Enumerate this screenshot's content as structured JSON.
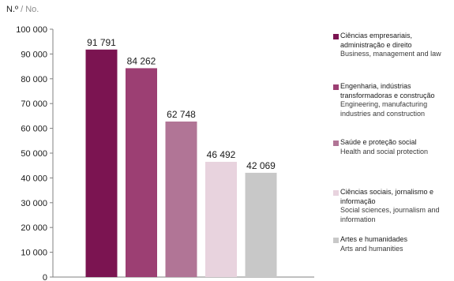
{
  "unit_label": {
    "pt": "N.º",
    "separator": " / ",
    "en": "No."
  },
  "chart_data": {
    "type": "bar",
    "categories": [
      "Ciências empresariais, administração e direito / Business, management and law",
      "Engenharia, indústrias transformadoras e construção / Engineering, manufacturing industries and construction",
      "Saúde e proteção social / Health and social protection",
      "Ciências sociais, jornalismo e informação / Social sciences, journalism and information",
      "Artes e humanidades / Arts and humanities"
    ],
    "values": [
      91791,
      84262,
      62748,
      46492,
      42069
    ],
    "data_labels": [
      "91 791",
      "84 262",
      "62 748",
      "46 492",
      "42 069"
    ],
    "colors": [
      "#7b1451",
      "#9c3f73",
      "#b17596",
      "#e8d3de",
      "#c8c8c8"
    ],
    "ylim": [
      0,
      100000
    ],
    "yticks": [
      0,
      10000,
      20000,
      30000,
      40000,
      50000,
      60000,
      70000,
      80000,
      90000,
      100000
    ],
    "ytick_labels": [
      "0",
      "10 000",
      "20 000",
      "30 000",
      "40 000",
      "50 000",
      "60 000",
      "70 000",
      "80 000",
      "90 000",
      "100 000"
    ],
    "grid": false,
    "legend_position": "right"
  },
  "legend": [
    {
      "pt": "Ciências empresariais, administração e direito",
      "en": "Business, management and law",
      "color": "#7b1451"
    },
    {
      "pt": "Engenharia, indústrias transformadoras e construção",
      "en": "Engineering, manufacturing industries and construction",
      "color": "#9c3f73"
    },
    {
      "pt": "Saúde e proteção social",
      "en": "Health and social protection",
      "color": "#b17596"
    },
    {
      "pt": "Ciências sociais, jornalismo e informação",
      "en": "Social sciences, journalism and information",
      "color": "#e8d3de"
    },
    {
      "pt": "Artes e humanidades",
      "en": "Arts and humanities",
      "color": "#c8c8c8"
    }
  ]
}
